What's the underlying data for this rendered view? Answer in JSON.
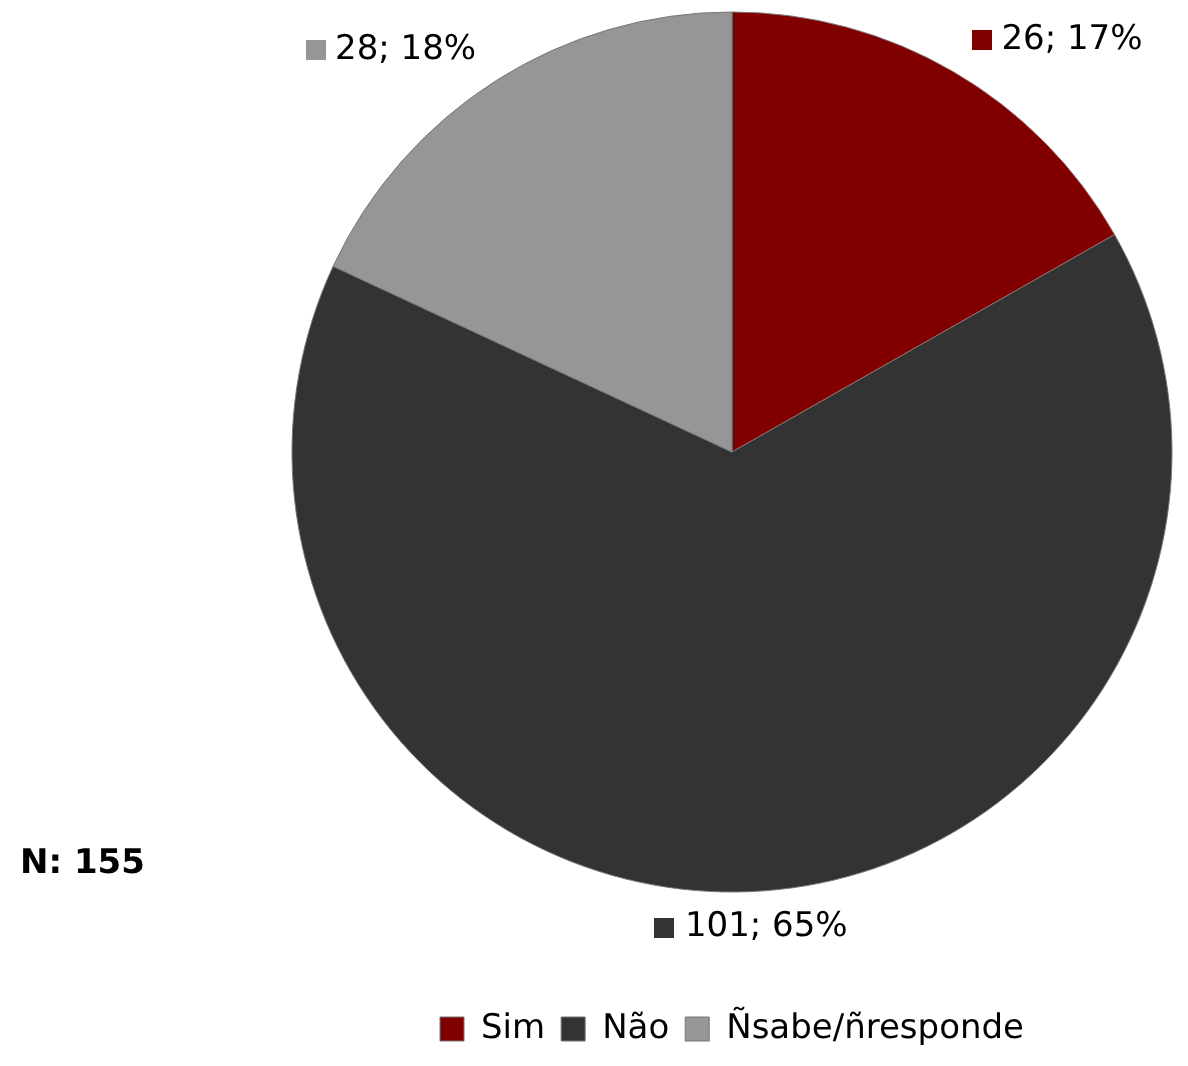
{
  "chart_data": {
    "type": "pie",
    "categories": [
      "Sim",
      "Não",
      "Ñsabe/ñresponde"
    ],
    "values": [
      26,
      101,
      28
    ],
    "colors": [
      "#800000",
      "#333333",
      "#969696"
    ],
    "value_labels": [
      "26; 17%",
      "101; 65%",
      "28; 18%"
    ],
    "legend": "bottom",
    "annotations": [
      "N: 155"
    ]
  }
}
